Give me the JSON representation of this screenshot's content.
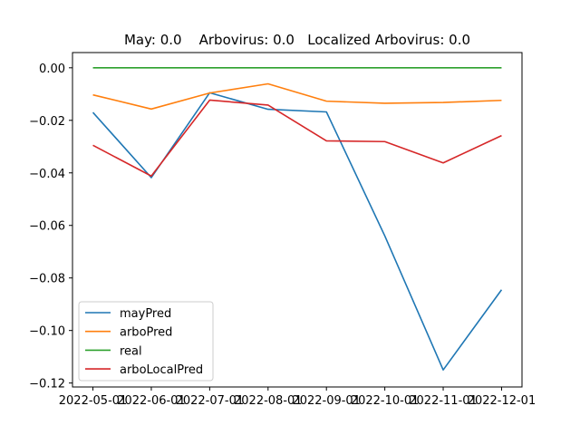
{
  "chart_data": {
    "type": "line",
    "title": "May: 0.0    Arbovirus: 0.0   Localized Arbovirus: 0.0",
    "xlabel": "",
    "ylabel": "",
    "x": [
      "2022-05-01",
      "2022-06-01",
      "2022-07-01",
      "2022-08-01",
      "2022-09-01",
      "2022-10-01",
      "2022-11-01",
      "2022-12-01"
    ],
    "ylim": [
      -0.1215,
      0.0058
    ],
    "yticks": [
      0.0,
      -0.02,
      -0.04,
      -0.06,
      -0.08,
      -0.1,
      -0.12
    ],
    "ytick_labels": [
      "0.00",
      "−0.02",
      "−0.04",
      "−0.06",
      "−0.08",
      "−0.10",
      "−0.12"
    ],
    "grid": false,
    "legend_position": "lower-left",
    "series": [
      {
        "name": "mayPred",
        "color": "#1f77b4",
        "values": [
          -0.017,
          -0.0418,
          -0.0095,
          -0.0158,
          -0.0168,
          -0.064,
          -0.115,
          -0.0845
        ]
      },
      {
        "name": "arboPred",
        "color": "#ff7f0e",
        "values": [
          -0.0103,
          -0.0157,
          -0.0096,
          -0.0061,
          -0.0127,
          -0.0135,
          -0.0132,
          -0.0124
        ]
      },
      {
        "name": "real",
        "color": "#2ca02c",
        "values": [
          0.0,
          0.0,
          0.0,
          0.0,
          0.0,
          0.0,
          0.0,
          0.0
        ]
      },
      {
        "name": "arboLocalPred",
        "color": "#d62728",
        "values": [
          -0.0295,
          -0.0412,
          -0.0123,
          -0.0142,
          -0.0278,
          -0.0281,
          -0.0362,
          -0.0258
        ]
      }
    ]
  }
}
